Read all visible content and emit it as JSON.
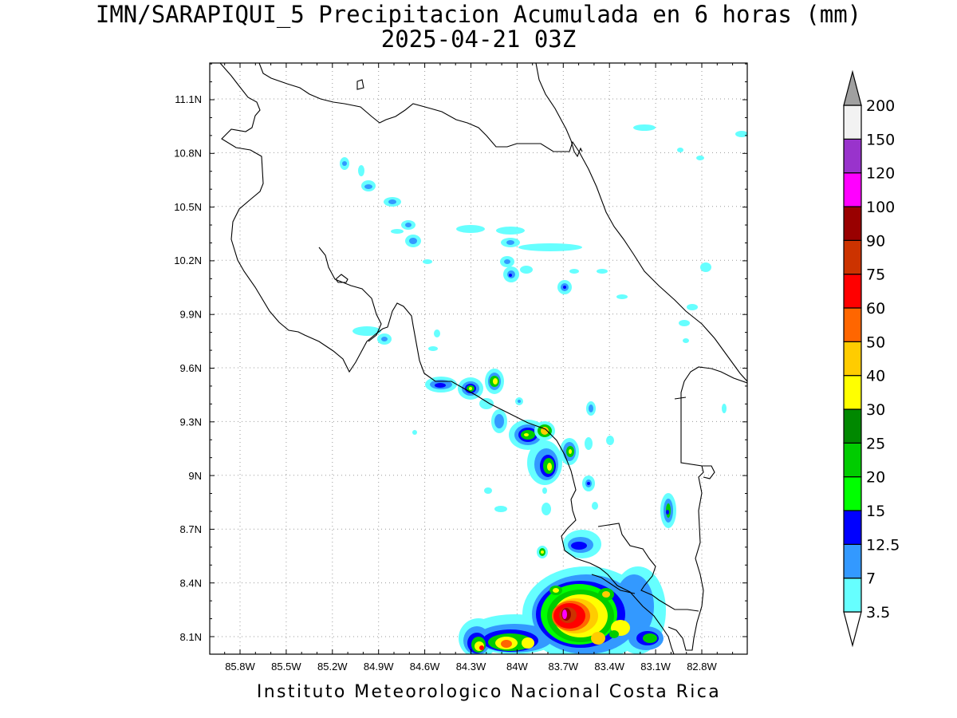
{
  "title": {
    "line1": "IMN/SARAPIQUI_5 Precipitacion Acumulada en 6 horas (mm)",
    "line2": "2025-04-21 03Z"
  },
  "credit": "Instituto Meteorologico Nacional Costa Rica",
  "map": {
    "lon_range": [
      -86.0,
      -83.0
    ],
    "lat_range": [
      8.0,
      11.3
    ],
    "grid_lines": "dotted",
    "lon_ticks": [
      "85.8W",
      "85.5W",
      "85.2W",
      "84.9W",
      "84.6W",
      "84.3W",
      "84W",
      "83.7W",
      "83.4W",
      "83.1W",
      "82.8W"
    ],
    "lat_ticks": [
      "11.1N",
      "10.8N",
      "10.5N",
      "10.2N",
      "9.9N",
      "9.6N",
      "9.3N",
      "9N",
      "8.7N",
      "8.4N",
      "8.1N"
    ]
  },
  "colorbar": {
    "labels": [
      "3.5",
      "7",
      "12.5",
      "15",
      "20",
      "25",
      "30",
      "40",
      "50",
      "60",
      "75",
      "90",
      "100",
      "120",
      "150",
      "200"
    ],
    "colors": [
      "#66ffff",
      "#3399ff",
      "#0000ff",
      "#00ff00",
      "#00cc00",
      "#008800",
      "#ffff00",
      "#ffcc00",
      "#ff6600",
      "#ff0000",
      "#cc3300",
      "#990000",
      "#ff00ff",
      "#9933cc",
      "#f2f2f2",
      "#a0a0a0"
    ]
  }
}
